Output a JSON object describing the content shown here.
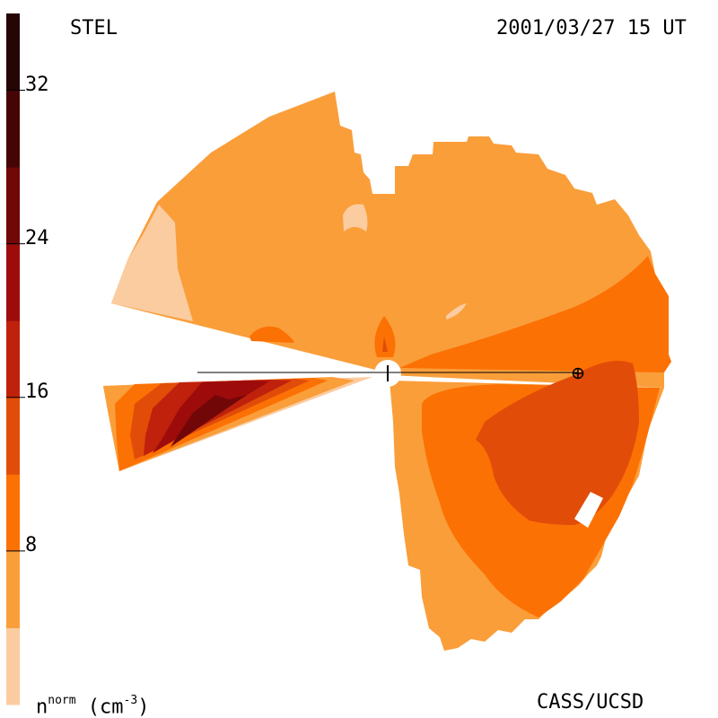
{
  "header": {
    "source": "STEL",
    "datetime": "2001/03/27 15 UT"
  },
  "footer": {
    "unit_base": "n",
    "unit_super": "norm",
    "unit_paren_open": " (cm",
    "unit_exp": "-3",
    "unit_paren_close": ")",
    "credit": "CASS/UCSD"
  },
  "chart_data": {
    "type": "heatmap",
    "title": "",
    "colorbar": {
      "ticks": [
        "32",
        "24",
        "16",
        "8"
      ],
      "tick_values": [
        32,
        24,
        16,
        8
      ],
      "range": [
        0,
        36
      ],
      "levels": [
        {
          "from": 0,
          "to": 4,
          "color": "#fbcca0"
        },
        {
          "from": 4,
          "to": 8,
          "color": "#fa9e3a"
        },
        {
          "from": 8,
          "to": 12,
          "color": "#fc7104"
        },
        {
          "from": 12,
          "to": 16,
          "color": "#e14d08"
        },
        {
          "from": 16,
          "to": 20,
          "color": "#c0210c"
        },
        {
          "from": 20,
          "to": 24,
          "color": "#9d0c0a"
        },
        {
          "from": 24,
          "to": 28,
          "color": "#720708"
        },
        {
          "from": 28,
          "to": 32,
          "color": "#450505"
        },
        {
          "from": 32,
          "to": 36,
          "color": "#260505"
        }
      ]
    },
    "markers": [
      {
        "name": "Sun",
        "symbol": "I"
      },
      {
        "name": "Earth",
        "symbol": "⊕"
      }
    ]
  },
  "colors": {
    "background": "#ffffff",
    "level_0": "#fbcca0",
    "level_1": "#fa9e3a",
    "level_2": "#fc7104",
    "level_3": "#e14d08",
    "level_4": "#c0210c",
    "level_5": "#9d0c0a",
    "level_6": "#720708"
  }
}
